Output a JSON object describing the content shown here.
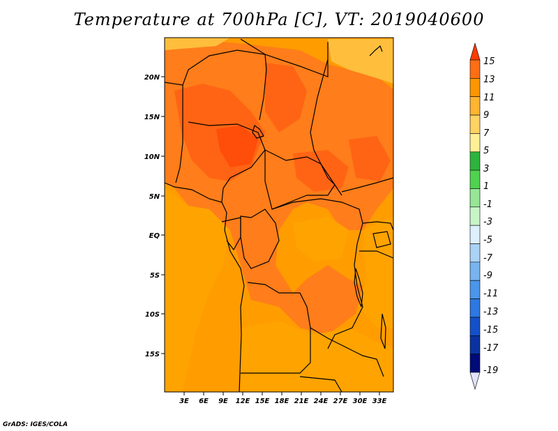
{
  "title": "Temperature at 700hPa [C], VT: 2019040600",
  "credit": "GrADS: IGES/COLA",
  "map": {
    "lon_ticks": [
      "3E",
      "6E",
      "9E",
      "12E",
      "15E",
      "18E",
      "21E",
      "24E",
      "27E",
      "30E",
      "33E"
    ],
    "lat_ticks": [
      "20N",
      "15N",
      "10N",
      "5N",
      "EQ",
      "5S",
      "10S",
      "15S"
    ],
    "background_color": "#ff9c00",
    "field_colors": [
      "#ffbe3c",
      "#ffa300",
      "#ff7d1a",
      "#ff6414",
      "#ff4d0a"
    ]
  },
  "colorbar": {
    "labels": [
      "15",
      "13",
      "11",
      "9",
      "7",
      "5",
      "3",
      "1",
      "-1",
      "-3",
      "-5",
      "-7",
      "-9",
      "-11",
      "-13",
      "-15",
      "-17",
      "-19"
    ],
    "colors": [
      "#ff3c00",
      "#ff6e14",
      "#ff9600",
      "#ffb432",
      "#ffd264",
      "#fff096",
      "#2db43c",
      "#50d250",
      "#96e696",
      "#c8f5c8",
      "#ddf0fc",
      "#aad2f5",
      "#78b4f0",
      "#4b96eb",
      "#2d78e1",
      "#1450c8",
      "#0a32a0",
      "#000a78",
      "#e1e1fa"
    ]
  }
}
